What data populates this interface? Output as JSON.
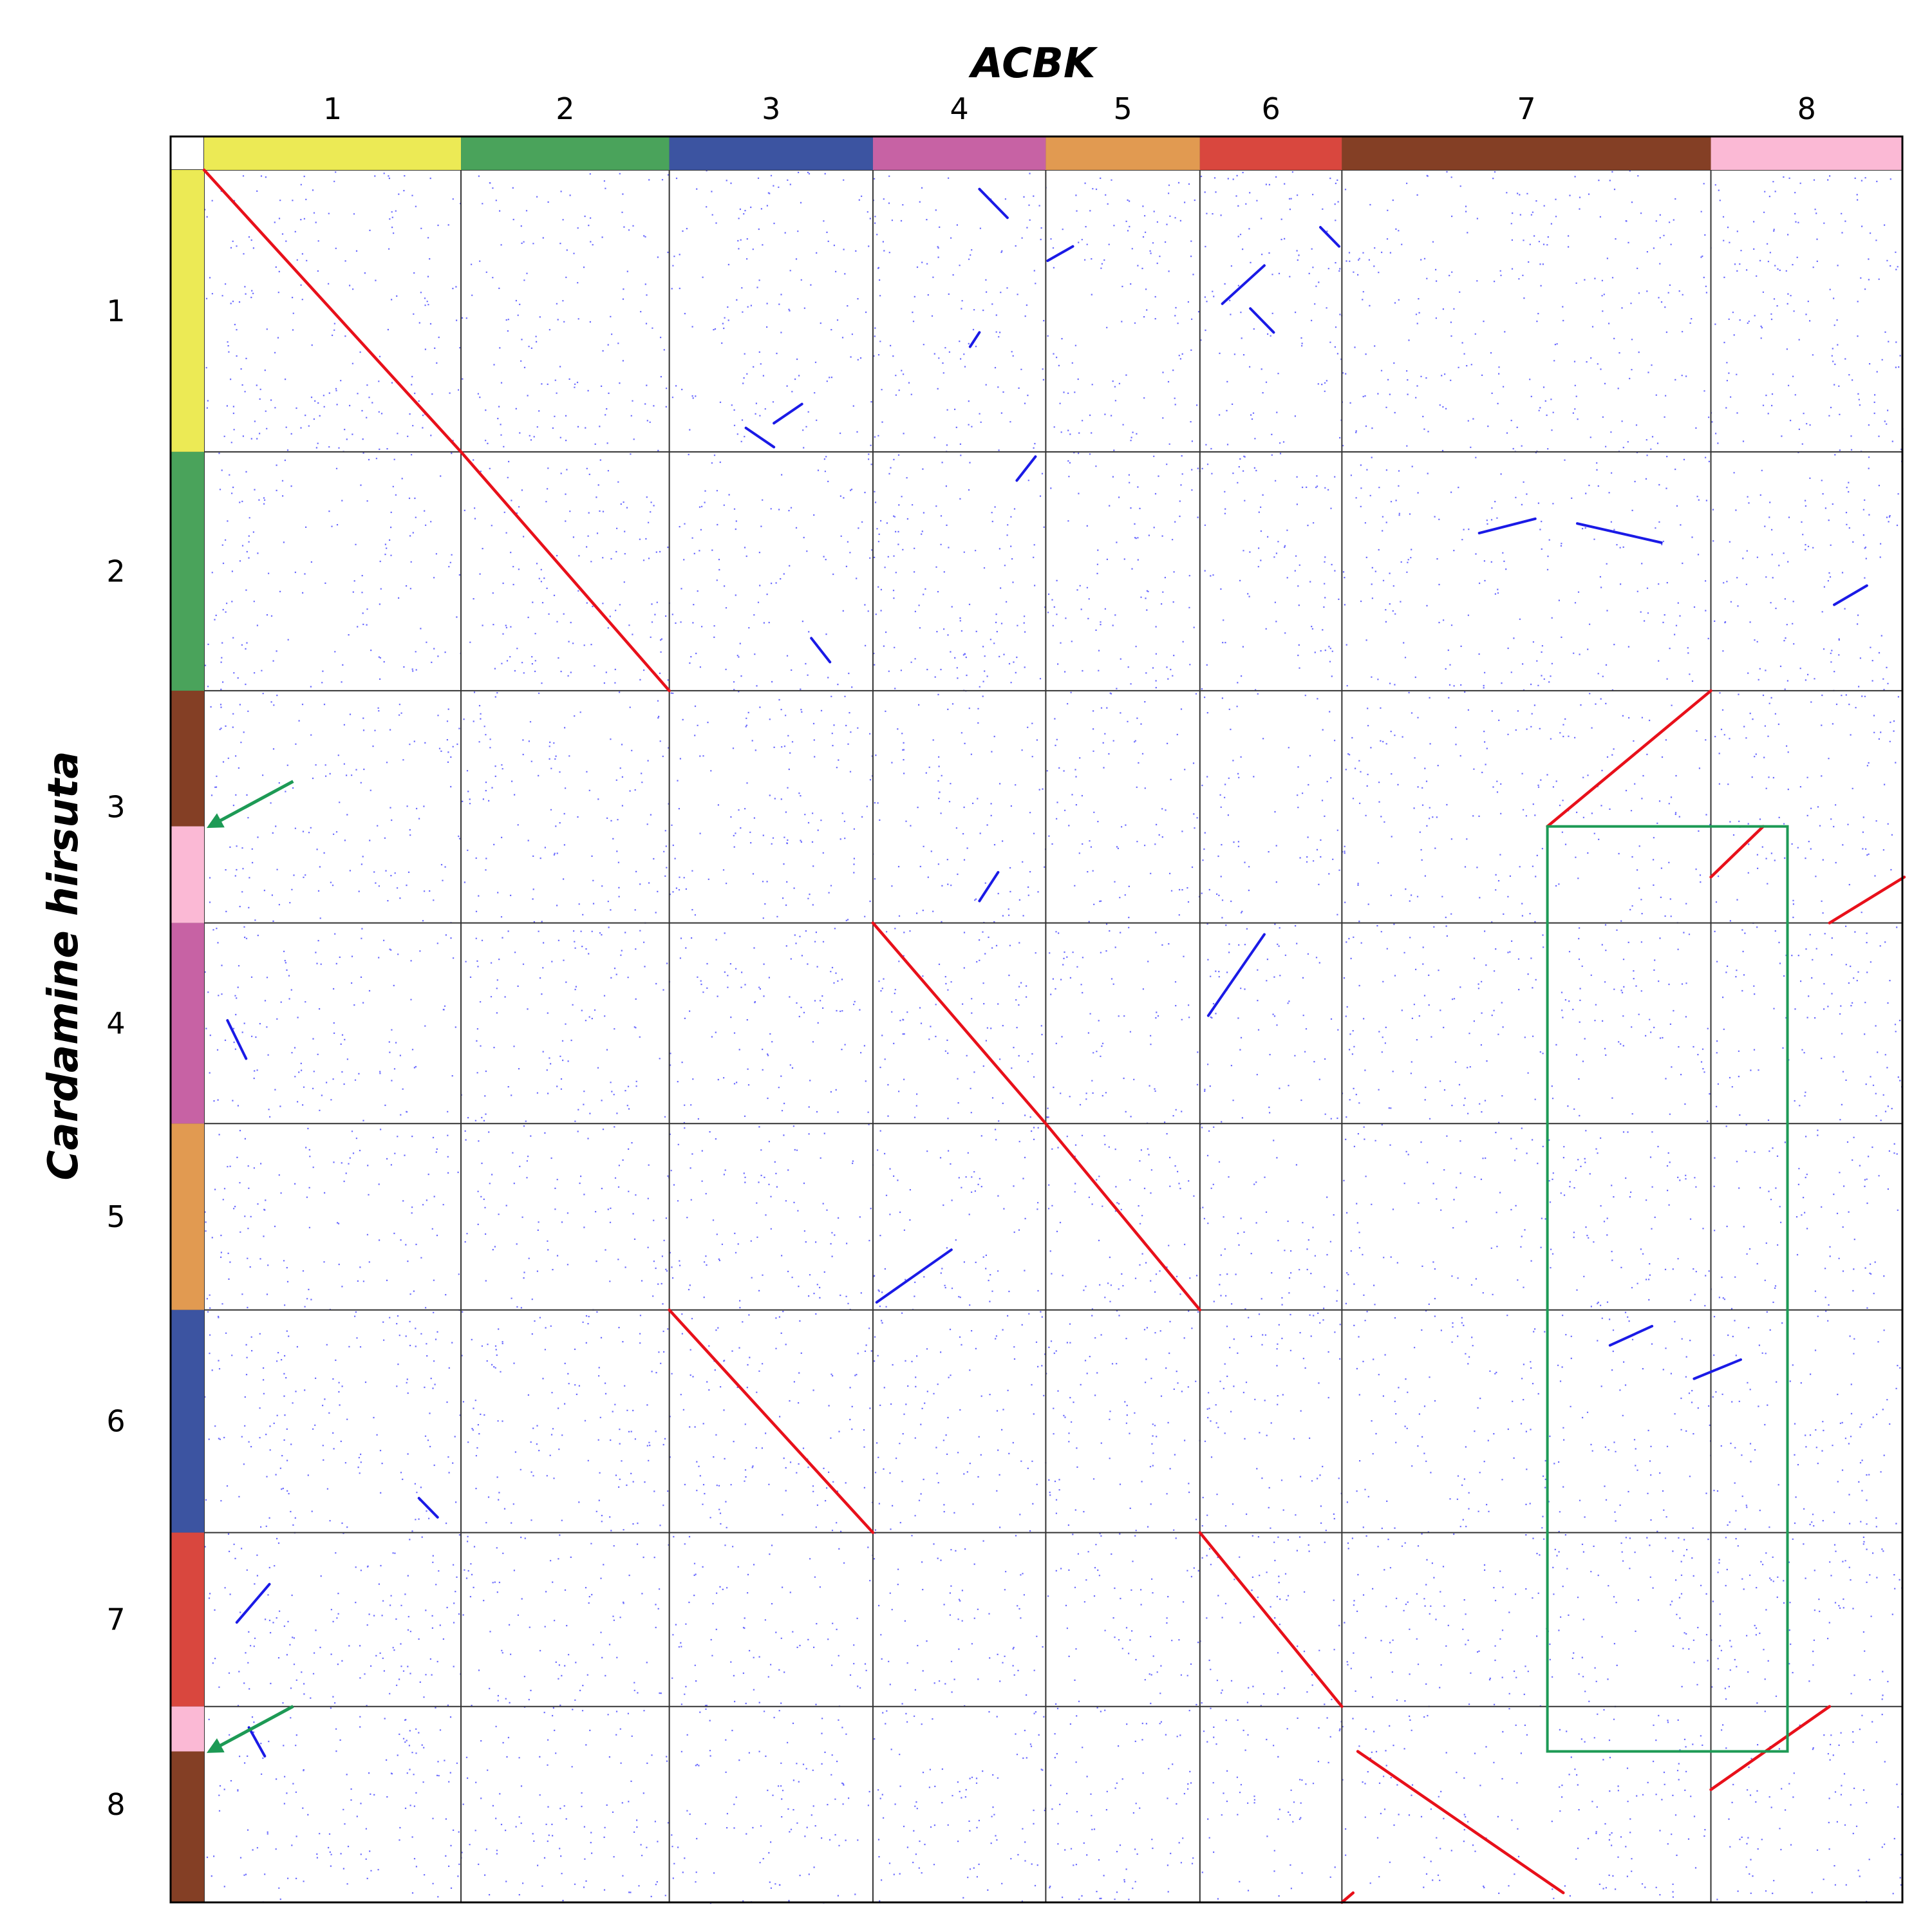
{
  "chart_data": {
    "type": "dotplot",
    "x_genome": "ACBK",
    "y_genome": "Cardamine hirsuta",
    "x_chromosomes": [
      {
        "label": "1",
        "length": 27.5,
        "color": "#ecea55"
      },
      {
        "label": "2",
        "length": 22.3,
        "color": "#4aa35b"
      },
      {
        "label": "3",
        "length": 21.8,
        "color": "#3c54a1"
      },
      {
        "label": "4",
        "length": 18.5,
        "color": "#c762a4"
      },
      {
        "label": "5",
        "length": 16.5,
        "color": "#e19a51"
      },
      {
        "label": "6",
        "length": 15.2,
        "color": "#d9473e"
      },
      {
        "label": "7",
        "length": 39.5,
        "color": "#843f25"
      },
      {
        "label": "8",
        "length": 20.5,
        "color": "#fbb9d5"
      }
    ],
    "y_chromosomes": [
      {
        "label": "1",
        "length": 29.5
      },
      {
        "label": "2",
        "length": 25.0
      },
      {
        "label": "3",
        "length": 24.3
      },
      {
        "label": "4",
        "length": 21.0
      },
      {
        "label": "5",
        "length": 19.5
      },
      {
        "label": "6",
        "length": 23.3
      },
      {
        "label": "7",
        "length": 18.2
      },
      {
        "label": "8",
        "length": 20.5
      }
    ],
    "y_color_blocks": [
      {
        "y_start": 0,
        "y_end": 29.5,
        "color": "#ecea55"
      },
      {
        "y_start": 29.5,
        "y_end": 54.5,
        "color": "#4aa35b"
      },
      {
        "y_start": 54.5,
        "y_end": 68.7,
        "color": "#843f25"
      },
      {
        "y_start": 68.7,
        "y_end": 78.8,
        "color": "#fbb9d5"
      },
      {
        "y_start": 78.8,
        "y_end": 99.8,
        "color": "#c762a4"
      },
      {
        "y_start": 99.8,
        "y_end": 119.3,
        "color": "#e19a51"
      },
      {
        "y_start": 119.3,
        "y_end": 142.6,
        "color": "#3c54a1"
      },
      {
        "y_start": 142.6,
        "y_end": 160.8,
        "color": "#d9473e"
      },
      {
        "y_start": 160.8,
        "y_end": 165.5,
        "color": "#fbb9d5"
      },
      {
        "y_start": 165.5,
        "y_end": 181.3,
        "color": "#843f25"
      }
    ],
    "primary_segments": [
      {
        "x": [
          0,
          27.5
        ],
        "y": [
          0,
          29.5
        ]
      },
      {
        "x": [
          27.5,
          49.8
        ],
        "y": [
          29.5,
          54.5
        ]
      },
      {
        "x": [
          71.6,
          90.1
        ],
        "y": [
          78.8,
          99.8
        ]
      },
      {
        "x": [
          90.1,
          106.6
        ],
        "y": [
          99.8,
          119.3
        ]
      },
      {
        "x": [
          49.8,
          71.6
        ],
        "y": [
          119.3,
          142.6
        ]
      },
      {
        "x": [
          106.6,
          121.8
        ],
        "y": [
          142.6,
          160.8
        ]
      },
      {
        "x": [
          143.8,
          161.3
        ],
        "y": [
          68.7,
          54.5
        ]
      },
      {
        "x": [
          161.3,
          166.9
        ],
        "y": [
          74.0,
          68.7
        ]
      },
      {
        "x": [
          174.0,
          182.0
        ],
        "y": [
          78.8,
          74.0
        ]
      },
      {
        "x": [
          161.3,
          174.0
        ],
        "y": [
          169.5,
          160.8
        ]
      },
      {
        "x": [
          123.5,
          145.5
        ],
        "y": [
          165.5,
          180.3
        ]
      },
      {
        "x": [
          121.8,
          123.0
        ],
        "y": [
          181.3,
          180.3
        ]
      }
    ],
    "secondary_segments": [
      {
        "x": [
          83.0,
          86.0
        ],
        "y": [
          2.0,
          5.0
        ]
      },
      {
        "x": [
          90.3,
          93.0
        ],
        "y": [
          9.5,
          8.0
        ]
      },
      {
        "x": [
          109.0,
          113.5
        ],
        "y": [
          14.0,
          10.0
        ]
      },
      {
        "x": [
          112.0,
          114.5
        ],
        "y": [
          14.5,
          17.0
        ]
      },
      {
        "x": [
          119.5,
          121.5
        ],
        "y": [
          6.0,
          8.0
        ]
      },
      {
        "x": [
          58.0,
          61.0
        ],
        "y": [
          27.0,
          29.0
        ]
      },
      {
        "x": [
          61.0,
          64.0
        ],
        "y": [
          26.5,
          24.5
        ]
      },
      {
        "x": [
          82.0,
          83.0
        ],
        "y": [
          18.5,
          17.0
        ]
      },
      {
        "x": [
          136.5,
          142.5
        ],
        "y": [
          38.0,
          36.5
        ]
      },
      {
        "x": [
          147.0,
          156.0
        ],
        "y": [
          37.0,
          39.0
        ]
      },
      {
        "x": [
          174.5,
          178.0
        ],
        "y": [
          45.5,
          43.5
        ]
      },
      {
        "x": [
          65.0,
          67.0
        ],
        "y": [
          49.0,
          51.5
        ]
      },
      {
        "x": [
          87.0,
          89.0
        ],
        "y": [
          32.5,
          30.0
        ]
      },
      {
        "x": [
          83.0,
          85.0
        ],
        "y": [
          76.5,
          73.5
        ]
      },
      {
        "x": [
          107.5,
          113.5
        ],
        "y": [
          88.5,
          80.0
        ]
      },
      {
        "x": [
          72.0,
          80.0
        ],
        "y": [
          118.5,
          113.0
        ]
      },
      {
        "x": [
          2.5,
          4.5
        ],
        "y": [
          89.0,
          93.0
        ]
      },
      {
        "x": [
          150.5,
          155.0
        ],
        "y": [
          123.0,
          121.0
        ]
      },
      {
        "x": [
          159.5,
          164.5
        ],
        "y": [
          126.5,
          124.5
        ]
      },
      {
        "x": [
          23.0,
          25.0
        ],
        "y": [
          139.0,
          141.0
        ]
      },
      {
        "x": [
          3.5,
          7.0
        ],
        "y": [
          152.0,
          148.0
        ]
      },
      {
        "x": [
          4.8,
          6.5
        ],
        "y": [
          163.0,
          166.0
        ]
      }
    ],
    "highlight_box": {
      "x": [
        143.8,
        169.5
      ],
      "y": [
        68.7,
        165.5
      ],
      "color": "#1d9a55"
    },
    "annotations": [
      {
        "type": "arrow",
        "points_to": {
          "x": 0.3,
          "y": 68.7
        },
        "color": "#1d9a55"
      },
      {
        "type": "arrow",
        "points_to": {
          "x": 0.3,
          "y": 165.5
        },
        "color": "#1d9a55"
      }
    ],
    "series_colors": {
      "primary": "#e8101a",
      "secondary": "#1a1ae6",
      "background_dots": "#3b3bff",
      "grid": "#333333"
    }
  }
}
